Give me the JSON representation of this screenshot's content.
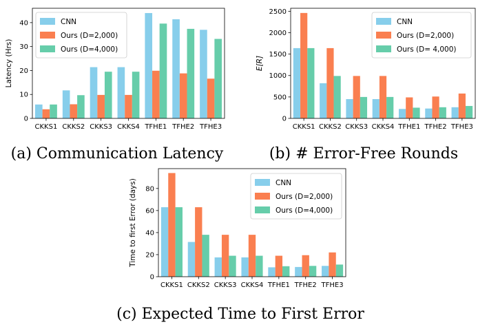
{
  "colors": {
    "CNN": "#87CEEB",
    "Ours (D=2,000)": "#FA7F50",
    "Ours (D=4,000)": "#66CDAA"
  },
  "chart_data": [
    {
      "type": "bar",
      "caption": "(a) Communication Latency",
      "ylabel": "Latency (Hrs)",
      "xlabel": "",
      "ylim": [
        0,
        46
      ],
      "yticks": [
        0,
        10,
        20,
        30,
        40
      ],
      "grid": false,
      "legend_position": "top-left",
      "categories": [
        "CKKS1",
        "CKKS2",
        "CKKS3",
        "CKKS4",
        "TFHE1",
        "TFHE2",
        "TFHE3"
      ],
      "series": [
        {
          "name": "CNN",
          "values": [
            5.8,
            11.7,
            21.4,
            21.4,
            44,
            41.4,
            37
          ]
        },
        {
          "name": "Ours (D=2,000)",
          "values": [
            3.8,
            5.9,
            9.8,
            9.8,
            19.9,
            18.8,
            16.6
          ]
        },
        {
          "name": "Ours (D=4,000)",
          "values": [
            5.8,
            9.7,
            19.5,
            19.5,
            39.6,
            37.4,
            33.2
          ]
        }
      ]
    },
    {
      "type": "bar",
      "caption": "(b) # Error-Free Rounds",
      "ylabel": "E[R]",
      "xlabel": "",
      "ylim": [
        0,
        2570
      ],
      "yticks": [
        0,
        500,
        1000,
        1500,
        2000,
        2500
      ],
      "grid": false,
      "legend_position": "top-right",
      "categories": [
        "CKKS1",
        "CKKS2",
        "CKKS3",
        "CKKS4",
        "TFHE1",
        "TFHE2",
        "TFHE3"
      ],
      "series": [
        {
          "name": "CNN",
          "values": [
            1640,
            820,
            450,
            450,
            220,
            230,
            260
          ]
        },
        {
          "name": "Ours (D=2,000)",
          "values": [
            2460,
            1640,
            990,
            990,
            490,
            510,
            580
          ]
        },
        {
          "name": "Ours (D= 4,000)",
          "values": [
            1640,
            990,
            500,
            500,
            250,
            260,
            290
          ]
        }
      ]
    },
    {
      "type": "bar",
      "caption": "(c) Expected Time to First Error",
      "ylabel": "Time to first Error (days)",
      "xlabel": "",
      "ylim": [
        0,
        98
      ],
      "yticks": [
        0,
        20,
        40,
        60,
        80
      ],
      "grid": false,
      "legend_position": "top-right",
      "categories": [
        "CKKS1",
        "CKKS2",
        "CKKS3",
        "CKKS4",
        "TFHE1",
        "TFHE2",
        "TFHE3"
      ],
      "series": [
        {
          "name": "CNN",
          "values": [
            63,
            31.5,
            17.5,
            17.5,
            8.5,
            8.8,
            9.8
          ]
        },
        {
          "name": "Ours (D=2,000)",
          "values": [
            94,
            63,
            38,
            38,
            19,
            19.5,
            22
          ]
        },
        {
          "name": "Ours (D=4,000)",
          "values": [
            63,
            38,
            19,
            19,
            9.5,
            9.8,
            11
          ]
        }
      ]
    }
  ]
}
